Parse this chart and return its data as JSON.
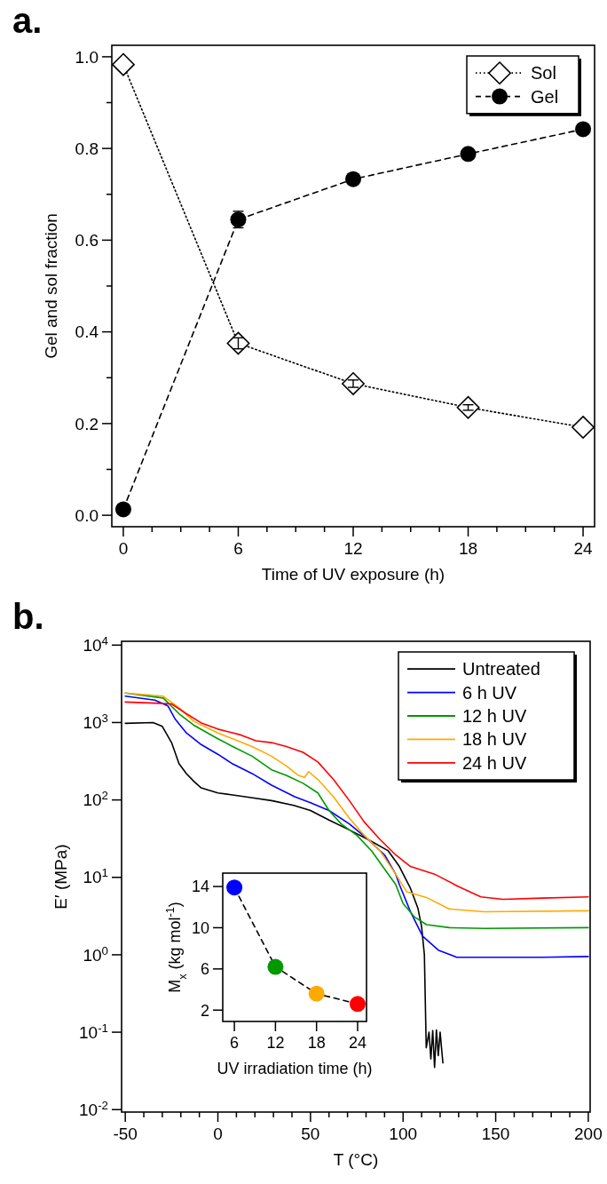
{
  "chart_data": [
    {
      "type": "line",
      "title": "a.",
      "xlabel": "Time of UV exposure (h)",
      "ylabel": "Gel and sol fraction",
      "x": [
        0,
        6,
        12,
        18,
        24
      ],
      "xlim": [
        -0.6,
        24.6
      ],
      "ylim": [
        -0.025,
        1.025
      ],
      "xticks": [
        0,
        {
          "value": 1.5,
          "label": null
        },
        {
          "value": 3,
          "label": null
        },
        {
          "value": 4.5,
          "label": null
        },
        6,
        {
          "value": 7.5,
          "label": null
        },
        {
          "value": 9,
          "label": null
        },
        {
          "value": 10.5,
          "label": null
        },
        12,
        {
          "value": 13.5,
          "label": null
        },
        {
          "value": 15,
          "label": null
        },
        {
          "value": 16.5,
          "label": null
        },
        18,
        {
          "value": 19.5,
          "label": null
        },
        {
          "value": 21,
          "label": null
        },
        {
          "value": 22.5,
          "label": null
        },
        24
      ],
      "yticks": [
        {
          "value": 0,
          "label": "0.0"
        },
        {
          "value": 0.1,
          "label": null
        },
        {
          "value": 0.2,
          "label": "0.2"
        },
        {
          "value": 0.3,
          "label": null
        },
        {
          "value": 0.4,
          "label": "0.4"
        },
        {
          "value": 0.5,
          "label": null
        },
        {
          "value": 0.6,
          "label": "0.6"
        },
        {
          "value": 0.7,
          "label": null
        },
        {
          "value": 0.8,
          "label": "0.8"
        },
        {
          "value": 0.9,
          "label": null
        },
        {
          "value": 1,
          "label": "1.0"
        }
      ],
      "grid": false,
      "legend": "top right",
      "series": [
        {
          "name": "Sol",
          "color": "#000000",
          "marker": "diamond",
          "line_style": "dotted",
          "values": [
            0.983,
            0.375,
            0.287,
            0.235,
            0.192
          ],
          "errors": [
            null,
            0.012,
            0.008,
            0.006,
            null
          ]
        },
        {
          "name": "Gel",
          "color": "#000000",
          "marker": "circle",
          "line_style": "dashed",
          "values": [
            0.013,
            0.645,
            0.733,
            0.788,
            0.842
          ],
          "errors": [
            null,
            0.018,
            null,
            null,
            null
          ]
        }
      ]
    },
    {
      "type": "line",
      "title": "b.",
      "xlabel": "T (°C)",
      "ylabel": "E′ (MPa)",
      "log": "y",
      "xlim": [
        -52,
        201
      ],
      "ylim": [
        0.0093,
        11200
      ],
      "xticks": [
        -50,
        {
          "value": -40,
          "label": null
        },
        {
          "value": -30,
          "label": null
        },
        {
          "value": -20,
          "label": null
        },
        {
          "value": -10,
          "label": null
        },
        0,
        {
          "value": 10,
          "label": null
        },
        {
          "value": 20,
          "label": null
        },
        {
          "value": 30,
          "label": null
        },
        {
          "value": 40,
          "label": null
        },
        50,
        {
          "value": 60,
          "label": null
        },
        {
          "value": 70,
          "label": null
        },
        {
          "value": 80,
          "label": null
        },
        {
          "value": 90,
          "label": null
        },
        100,
        {
          "value": 110,
          "label": null
        },
        {
          "value": 120,
          "label": null
        },
        {
          "value": 130,
          "label": null
        },
        {
          "value": 140,
          "label": null
        },
        150,
        {
          "value": 160,
          "label": null
        },
        {
          "value": 170,
          "label": null
        },
        {
          "value": 180,
          "label": null
        },
        {
          "value": 190,
          "label": null
        },
        200
      ],
      "yticks": [
        {
          "value": 0.01,
          "label": "10$^{-2}$"
        },
        {
          "value": 0.1,
          "label": "10$^{-1}$"
        },
        {
          "value": 1,
          "label": "10$^{0}$"
        },
        {
          "value": 10,
          "label": "10$^{1}$"
        },
        {
          "value": 100,
          "label": "10$^{2}$"
        },
        {
          "value": 1000,
          "label": "10$^{3}$"
        },
        {
          "value": 10000,
          "label": "10$^{4}$"
        }
      ],
      "grid": false,
      "legend": "top right",
      "series": [
        {
          "name": "Untreated",
          "color": "#000000",
          "x": [
            -50,
            -35,
            -30,
            -25,
            -21,
            -17,
            -13,
            -9,
            0,
            8,
            18,
            29,
            41,
            50,
            60,
            71,
            81,
            92,
            98,
            104,
            108,
            110,
            111.5,
            112.5,
            114,
            115,
            116,
            117,
            118,
            119,
            120,
            121.5
          ],
          "values": [
            977,
            1000,
            891,
            550,
            295,
            219,
            174,
            143,
            123,
            116,
            107,
            98,
            85,
            73,
            55,
            41,
            31,
            22,
            13.8,
            7.2,
            4.0,
            2.3,
            1.0,
            0.063,
            0.1,
            0.045,
            0.105,
            0.035,
            0.107,
            0.05,
            0.1,
            0.04
          ]
        },
        {
          "name": "6 h UV",
          "color": "#0000ff",
          "x": [
            -50,
            -34,
            -27,
            -23,
            -17,
            -9,
            0,
            8,
            18.5,
            29,
            41.5,
            50,
            60,
            71,
            81,
            90,
            96,
            98,
            104,
            110.5,
            119,
            129,
            144,
            175,
            200
          ],
          "values": [
            2190,
            1950,
            1640,
            1100,
            733,
            519,
            389,
            292,
            219,
            155,
            110,
            92,
            73,
            49,
            31,
            19.5,
            11,
            8.1,
            3.6,
            1.74,
            1.15,
            0.93,
            0.93,
            0.93,
            0.95
          ]
        },
        {
          "name": "12 h UV",
          "color": "#009900",
          "x": [
            -50,
            -29.5,
            -21,
            -13,
            0,
            8,
            18.5,
            29,
            37,
            46,
            54,
            60,
            66.6,
            75,
            83,
            92,
            96,
            100,
            106,
            112.6,
            125,
            144,
            200
          ],
          "values": [
            2400,
            2070,
            1300,
            923,
            617,
            490,
            367,
            245,
            207,
            164,
            123,
            73,
            49,
            35,
            22,
            11,
            8.1,
            4.6,
            3.1,
            2.45,
            2.24,
            2.19,
            2.24
          ]
        },
        {
          "name": "18 h UV",
          "color": "#ffaa00",
          "x": [
            -50,
            -29.5,
            -21,
            -13,
            0,
            8,
            18.5,
            29,
            37,
            43.6,
            46.8,
            49,
            54,
            62.4,
            71,
            79,
            87.5,
            96,
            102,
            112.6,
            125,
            144,
            200
          ],
          "values": [
            2400,
            2190,
            1550,
            1035,
            733,
            617,
            490,
            367,
            275,
            207,
            195,
            232,
            184,
            110,
            58,
            35,
            22,
            11,
            6.5,
            5.5,
            3.9,
            3.6,
            3.7
          ]
        },
        {
          "name": "24 h UV",
          "color": "#ff0000",
          "x": [
            -50,
            -34,
            -25,
            -17,
            -8.6,
            0,
            12.3,
            20.6,
            29,
            37,
            46,
            54,
            62.4,
            71,
            79,
            87.5,
            96,
            104,
            117,
            129,
            142,
            154,
            175,
            200
          ],
          "values": [
            1840,
            1780,
            1740,
            1300,
            977,
            822,
            692,
            582,
            550,
            490,
            412,
            309,
            184,
            98,
            52,
            31,
            19.5,
            13.8,
            11,
            7.8,
            5.6,
            5.2,
            5.4,
            5.6
          ]
        }
      ]
    },
    {
      "type": "line",
      "xlabel": "UV irradiation time (h)",
      "ylabel": "M$_{x}$ (kg mol$^{-1}$)",
      "x": [
        6,
        12,
        18,
        24
      ],
      "xlim": [
        4.3,
        25.3
      ],
      "ylim": [
        0.9,
        15.3
      ],
      "xticks": [
        6,
        12,
        18,
        24
      ],
      "yticks": [
        2,
        6,
        10,
        14
      ],
      "grid": false,
      "marker": "circle",
      "line_style": "dashed",
      "series": [
        {
          "color": "#000000",
          "colors": [
            "#0000ff",
            "#009900",
            "#ffaa00",
            "#ff0000"
          ],
          "values": [
            13.9,
            6.2,
            3.6,
            2.6
          ]
        }
      ]
    }
  ]
}
